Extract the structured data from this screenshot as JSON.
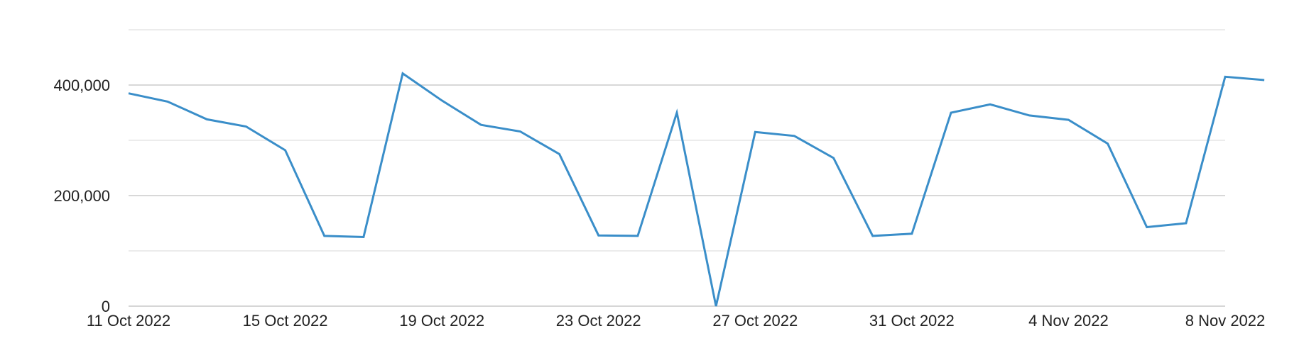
{
  "chart_data": {
    "type": "line",
    "title": "",
    "xlabel": "",
    "ylabel": "",
    "ylim": [
      0,
      500000
    ],
    "grid": true,
    "y_ticks": [
      {
        "value": 0,
        "label": "0"
      },
      {
        "value": 200000,
        "label": "200,000"
      },
      {
        "value": 400000,
        "label": "400,000"
      }
    ],
    "minor_gridlines": [
      100000,
      300000,
      500000
    ],
    "x_ticks": [
      {
        "date": "2022-10-11",
        "label": "11 Oct 2022"
      },
      {
        "date": "2022-10-15",
        "label": "15 Oct 2022"
      },
      {
        "date": "2022-10-19",
        "label": "19 Oct 2022"
      },
      {
        "date": "2022-10-23",
        "label": "23 Oct 2022"
      },
      {
        "date": "2022-10-27",
        "label": "27 Oct 2022"
      },
      {
        "date": "2022-10-31",
        "label": "31 Oct 2022"
      },
      {
        "date": "2022-11-04",
        "label": "4 Nov 2022"
      },
      {
        "date": "2022-11-08",
        "label": "8 Nov 2022"
      }
    ],
    "series": [
      {
        "color": "#3a8ec9",
        "points": [
          {
            "x": "2022-10-11",
            "y": 385000
          },
          {
            "x": "2022-10-12",
            "y": 370000
          },
          {
            "x": "2022-10-13",
            "y": 338000
          },
          {
            "x": "2022-10-14",
            "y": 325000
          },
          {
            "x": "2022-10-15",
            "y": 282000
          },
          {
            "x": "2022-10-16",
            "y": 127000
          },
          {
            "x": "2022-10-17",
            "y": 125000
          },
          {
            "x": "2022-10-18",
            "y": 421000
          },
          {
            "x": "2022-10-19",
            "y": 372000
          },
          {
            "x": "2022-10-20",
            "y": 328000
          },
          {
            "x": "2022-10-21",
            "y": 316000
          },
          {
            "x": "2022-10-22",
            "y": 275000
          },
          {
            "x": "2022-10-23",
            "y": 128000
          },
          {
            "x": "2022-10-24",
            "y": 127000
          },
          {
            "x": "2022-10-25",
            "y": 350000
          },
          {
            "x": "2022-10-26",
            "y": 0
          },
          {
            "x": "2022-10-27",
            "y": 315000
          },
          {
            "x": "2022-10-28",
            "y": 308000
          },
          {
            "x": "2022-10-29",
            "y": 268000
          },
          {
            "x": "2022-10-30",
            "y": 127000
          },
          {
            "x": "2022-10-31",
            "y": 131000
          },
          {
            "x": "2022-11-01",
            "y": 350000
          },
          {
            "x": "2022-11-02",
            "y": 365000
          },
          {
            "x": "2022-11-03",
            "y": 345000
          },
          {
            "x": "2022-11-04",
            "y": 337000
          },
          {
            "x": "2022-11-05",
            "y": 294000
          },
          {
            "x": "2022-11-06",
            "y": 143000
          },
          {
            "x": "2022-11-07",
            "y": 150000
          },
          {
            "x": "2022-11-08",
            "y": 415000
          },
          {
            "x": "2022-11-09",
            "y": 409000
          }
        ]
      }
    ]
  }
}
